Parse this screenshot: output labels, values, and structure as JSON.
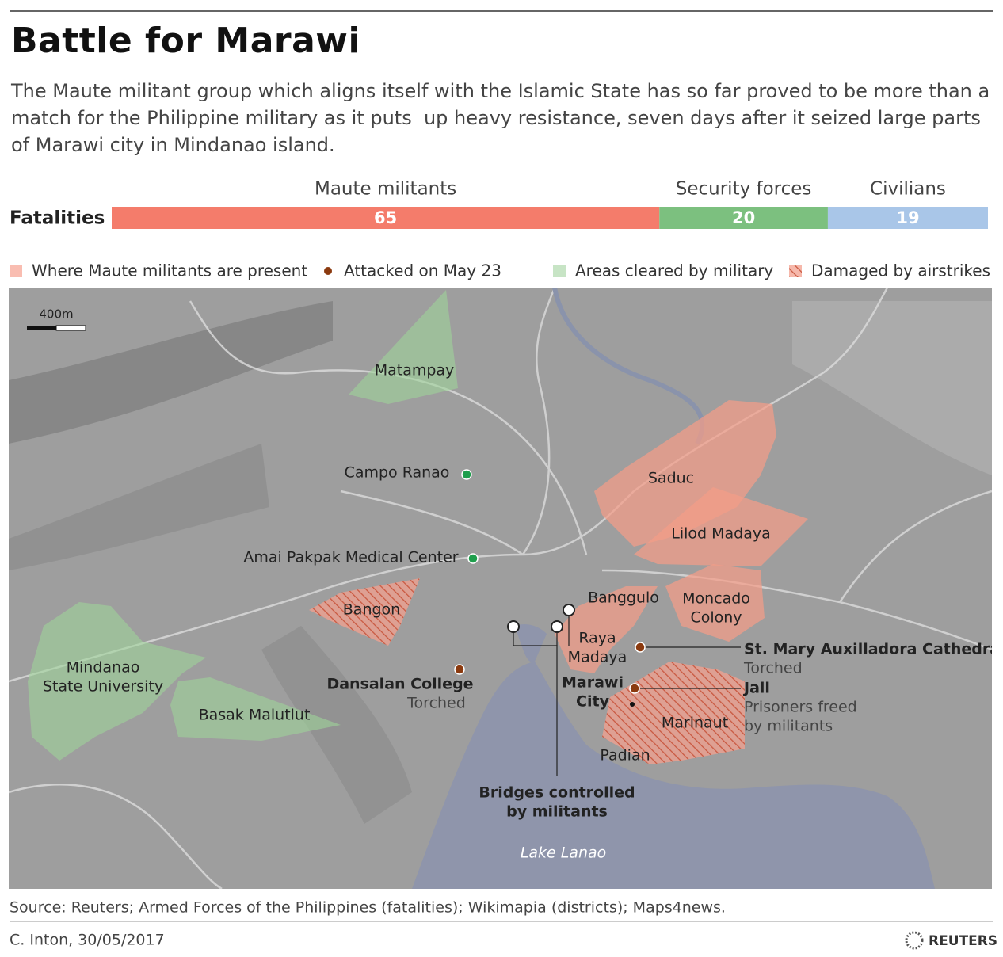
{
  "header": {
    "title": "Battle for Marawi",
    "subtitle": "The Maute militant group which aligns itself with the Islamic State has so far proved to be more than a match for the Philippine military as it puts  up heavy resistance, seven days after it seized large parts of Marawi city in Mindanao island."
  },
  "chart_data": {
    "type": "stacked-bar",
    "label": "Fatalities",
    "series": [
      {
        "name": "Maute militants",
        "color": "#f47c6b",
        "values": [
          65
        ]
      },
      {
        "name": "Security forces",
        "color": "#7cc07f",
        "values": [
          20
        ]
      },
      {
        "name": "Civilians",
        "color": "#a9c6e8",
        "values": [
          19
        ]
      }
    ]
  },
  "legend": [
    {
      "label": "Where Maute militants are present",
      "color": "#f9bdb1"
    },
    {
      "label": "Attacked on May 23",
      "color": "#8b3a0f"
    },
    {
      "label": "Areas cleared by military",
      "color": "#c7e4c5"
    },
    {
      "label": "Damaged by airstrikes",
      "color": "#e9917c"
    }
  ],
  "map": {
    "scale": "400m",
    "places": [
      {
        "lines": [
          "Matampay"
        ]
      },
      {
        "lines": [
          "Campo Ranao"
        ]
      },
      {
        "lines": [
          "Amai Pakpak Medical Center"
        ]
      },
      {
        "lines": [
          "Bangon"
        ]
      },
      {
        "lines": [
          "Mindanao",
          "State University"
        ]
      },
      {
        "lines": [
          "Basak Malutlut"
        ]
      },
      {
        "lines": [
          "Saduc"
        ]
      },
      {
        "lines": [
          "Lilod Madaya"
        ]
      },
      {
        "lines": [
          "Banggulo"
        ]
      },
      {
        "lines": [
          "Moncado",
          "Colony"
        ]
      },
      {
        "lines": [
          "Raya",
          "Madaya"
        ]
      },
      {
        "lines": [
          "Marawi",
          "City"
        ]
      },
      {
        "lines": [
          "Marinaut"
        ]
      },
      {
        "lines": [
          "Padian"
        ]
      }
    ],
    "annotations": [
      {
        "name": "Dansalan College",
        "note": [
          "Torched"
        ]
      },
      {
        "name": "St. Mary Auxilladora Cathedral",
        "note": [
          "Torched"
        ]
      },
      {
        "name": "Jail",
        "note": [
          "Prisoners freed",
          "by militants"
        ]
      },
      {
        "name": "Bridges controlled",
        "note": [
          "by militants"
        ]
      }
    ],
    "lake": "Lake Lanao"
  },
  "footer": {
    "source": "Source: Reuters; Armed Forces of the Philippines (fatalities); Wikimapia (districts); Maps4news.",
    "credit": "C. Inton,  30/05/2017",
    "logo": "REUTERS"
  }
}
